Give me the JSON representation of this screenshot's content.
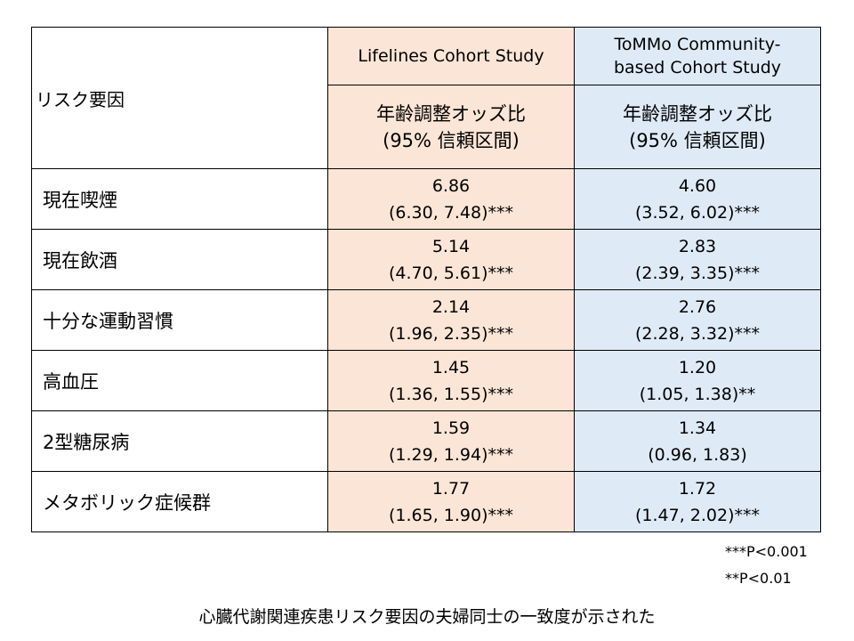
{
  "table": {
    "risk_factor_header": "リスク要因",
    "studies": [
      {
        "name_line1": "Lifelines Cohort Study",
        "name_line2": ""
      },
      {
        "name_line1": "ToMMo Community-",
        "name_line2": "based Cohort Study"
      }
    ],
    "stat_header": {
      "line1": "年齢調整オッズ比",
      "line2": "(95% 信頼区間)"
    },
    "rows": [
      {
        "factor": "現在喫煙",
        "lifelines": {
          "or": "6.86",
          "ci": "(6.30, 7.48)***"
        },
        "tommo": {
          "or": "4.60",
          "ci": "(3.52, 6.02)***"
        }
      },
      {
        "factor": "現在飲酒",
        "lifelines": {
          "or": "5.14",
          "ci": "(4.70, 5.61)***"
        },
        "tommo": {
          "or": "2.83",
          "ci": "(2.39, 3.35)***"
        }
      },
      {
        "factor": "十分な運動習慣",
        "lifelines": {
          "or": "2.14",
          "ci": "(1.96, 2.35)***"
        },
        "tommo": {
          "or": "2.76",
          "ci": "(2.28, 3.32)***"
        }
      },
      {
        "factor": "高血圧",
        "lifelines": {
          "or": "1.45",
          "ci": "(1.36, 1.55)***"
        },
        "tommo": {
          "or": "1.20",
          "ci": "(1.05, 1.38)**"
        }
      },
      {
        "factor": "2型糖尿病",
        "lifelines": {
          "or": "1.59",
          "ci": "(1.29, 1.94)***"
        },
        "tommo": {
          "or": "1.34",
          "ci": "(0.96, 1.83)"
        }
      },
      {
        "factor": "メタボリック症候群",
        "lifelines": {
          "or": "1.77",
          "ci": "(1.65, 1.90)***"
        },
        "tommo": {
          "or": "1.72",
          "ci": "(1.47, 2.02)***"
        }
      }
    ]
  },
  "footnotes": [
    "***P<0.001",
    "**P<0.01"
  ],
  "caption": "心臓代謝関連疾患リスク要因の夫婦同士の一致度が示された",
  "colors": {
    "lifelines_bg": "#fbe5d6",
    "tommo_bg": "#deebf7",
    "border": "#000000"
  }
}
